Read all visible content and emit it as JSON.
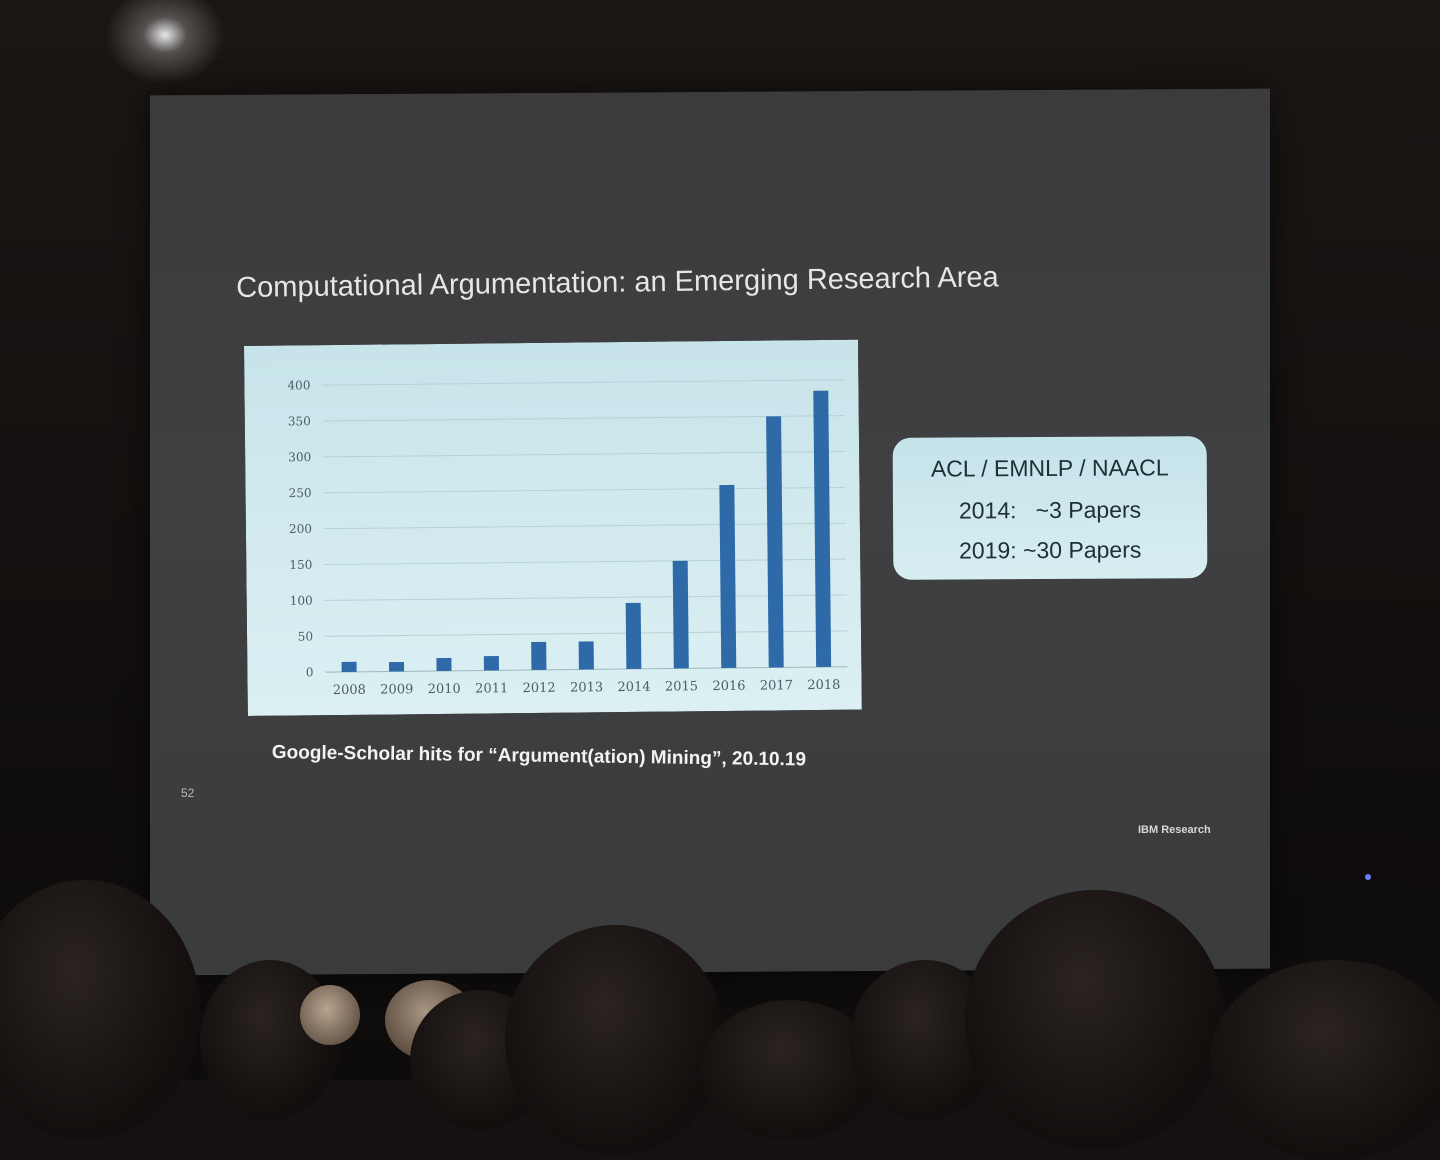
{
  "slide": {
    "title": "Computational Argumentation: an Emerging Research Area",
    "caption": "Google-Scholar hits for “Argument(ation) Mining”, 20.10.19",
    "slide_number": "52",
    "brand": "IBM Research",
    "callout": {
      "line1": "ACL / EMNLP / NAACL",
      "line2": "2014:   ~3 Papers",
      "line3": "2019: ~30 Papers"
    }
  },
  "colors": {
    "slide_background": "#3d3e40",
    "chart_background": "#d2ebef",
    "bar": "#2f6aa8",
    "callout_background": "#cfe9ee",
    "title_text": "#e4e6e8"
  },
  "chart_data": {
    "type": "bar",
    "title": "",
    "xlabel": "",
    "ylabel": "",
    "categories": [
      "2008",
      "2009",
      "2010",
      "2011",
      "2012",
      "2013",
      "2014",
      "2015",
      "2016",
      "2017",
      "2018"
    ],
    "values": [
      14,
      13,
      18,
      20,
      39,
      39,
      92,
      150,
      255,
      350,
      385
    ],
    "ylim": [
      0,
      400
    ],
    "yticks": [
      0,
      50,
      100,
      150,
      200,
      250,
      300,
      350,
      400
    ],
    "grid": true,
    "legend": "none"
  }
}
